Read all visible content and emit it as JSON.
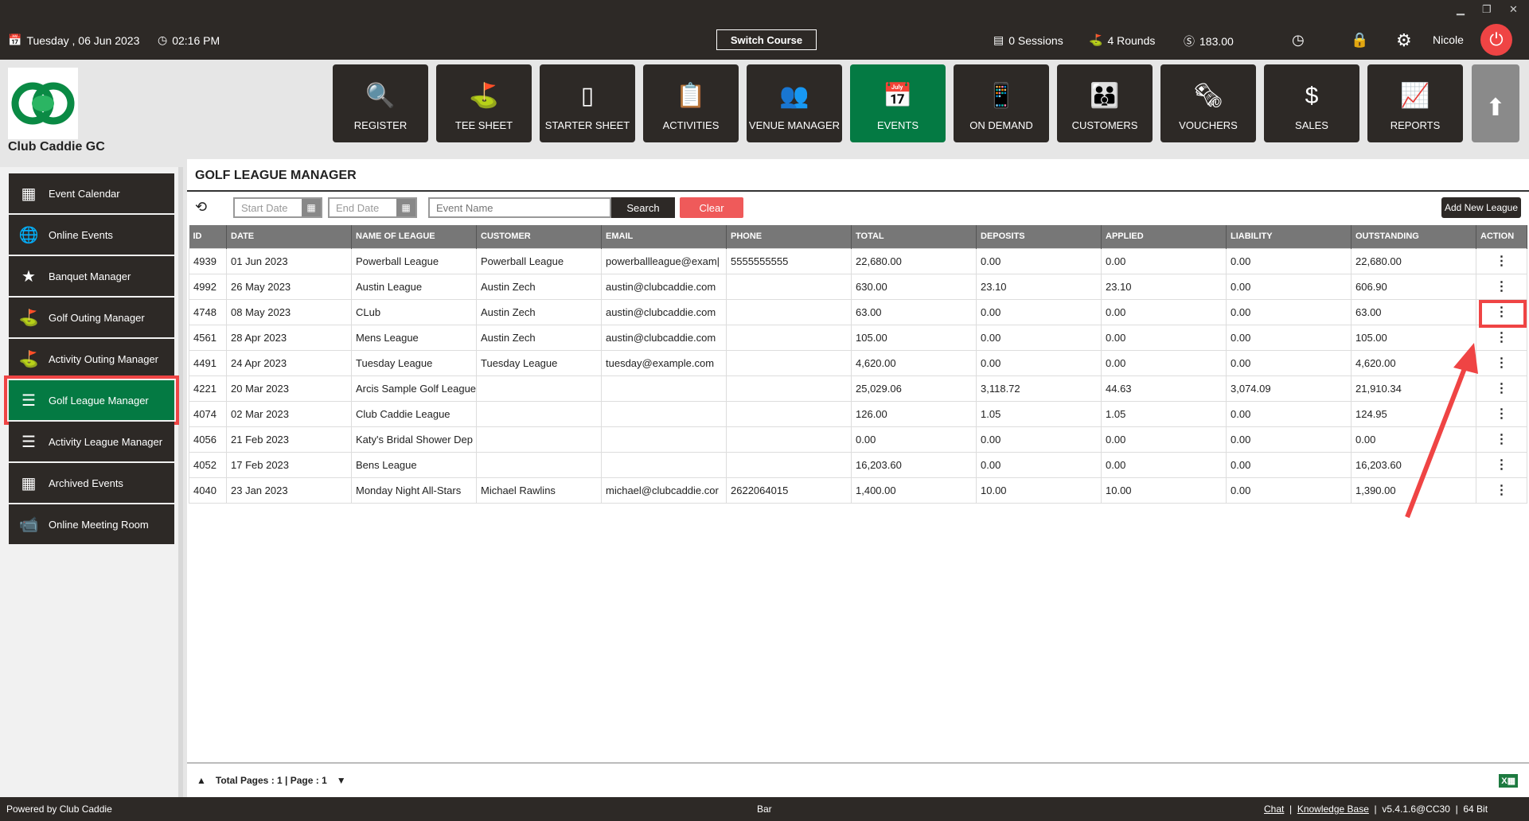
{
  "topbar": {
    "date": "Tuesday ,  06 Jun 2023",
    "time": "02:16 PM",
    "switch_course": "Switch Course",
    "sessions": "0 Sessions",
    "rounds": "4 Rounds",
    "balance": "183.00",
    "user": "Nicole"
  },
  "club_name": "Club Caddie GC",
  "nav": [
    {
      "label": "REGISTER",
      "icon": "🔍"
    },
    {
      "label": "TEE SHEET",
      "icon": "⛳"
    },
    {
      "label": "STARTER SHEET",
      "icon": "▯"
    },
    {
      "label": "ACTIVITIES",
      "icon": "📋"
    },
    {
      "label": "VENUE MANAGER",
      "icon": "👥"
    },
    {
      "label": "EVENTS",
      "icon": "📅"
    },
    {
      "label": "ON DEMAND",
      "icon": "📱"
    },
    {
      "label": "CUSTOMERS",
      "icon": "👪"
    },
    {
      "label": "VOUCHERS",
      "icon": "🗞"
    },
    {
      "label": "SALES",
      "icon": "$"
    },
    {
      "label": "REPORTS",
      "icon": "📈"
    }
  ],
  "sidebar": [
    {
      "label": "Event Calendar",
      "icon": "▦"
    },
    {
      "label": "Online Events",
      "icon": "🌐"
    },
    {
      "label": "Banquet Manager",
      "icon": "★"
    },
    {
      "label": "Golf Outing Manager",
      "icon": "⛳"
    },
    {
      "label": "Activity Outing Manager",
      "icon": "⛳"
    },
    {
      "label": "Golf League Manager",
      "icon": "☰"
    },
    {
      "label": "Activity League Manager",
      "icon": "☰"
    },
    {
      "label": "Archived Events",
      "icon": "▦"
    },
    {
      "label": "Online Meeting Room",
      "icon": "📹"
    }
  ],
  "page_title": "GOLF LEAGUE MANAGER",
  "filters": {
    "start_placeholder": "Start Date",
    "end_placeholder": "End Date",
    "event_placeholder": "Event Name",
    "search": "Search",
    "clear": "Clear",
    "add": "Add New League"
  },
  "colors": {
    "brand_green": "#047a43",
    "clear_red": "#ef5a5a",
    "dark": "#2d2926"
  },
  "table": {
    "headers": [
      "ID",
      "DATE",
      "NAME OF LEAGUE",
      "CUSTOMER",
      "EMAIL",
      "PHONE",
      "TOTAL",
      "DEPOSITS",
      "APPLIED",
      "LIABILITY",
      "OUTSTANDING",
      "ACTION"
    ],
    "rows": [
      [
        "4939",
        "01 Jun 2023",
        "Powerball League",
        "Powerball League",
        "powerballleague@exam|",
        "5555555555",
        "22,680.00",
        "0.00",
        "0.00",
        "0.00",
        "22,680.00"
      ],
      [
        "4992",
        "26 May 2023",
        "Austin League",
        "Austin Zech",
        "austin@clubcaddie.com",
        "",
        "630.00",
        "23.10",
        "23.10",
        "0.00",
        "606.90"
      ],
      [
        "4748",
        "08 May 2023",
        "CLub",
        "Austin Zech",
        "austin@clubcaddie.com",
        "",
        "63.00",
        "0.00",
        "0.00",
        "0.00",
        "63.00"
      ],
      [
        "4561",
        "28 Apr 2023",
        "Mens League",
        "Austin Zech",
        "austin@clubcaddie.com",
        "",
        "105.00",
        "0.00",
        "0.00",
        "0.00",
        "105.00"
      ],
      [
        "4491",
        "24 Apr 2023",
        "Tuesday League",
        "Tuesday League",
        "tuesday@example.com",
        "",
        "4,620.00",
        "0.00",
        "0.00",
        "0.00",
        "4,620.00"
      ],
      [
        "4221",
        "20 Mar 2023",
        "Arcis Sample Golf League",
        "",
        "",
        "",
        "25,029.06",
        "3,118.72",
        "44.63",
        "3,074.09",
        "21,910.34"
      ],
      [
        "4074",
        "02 Mar 2023",
        "Club Caddie League",
        "",
        "",
        "",
        "126.00",
        "1.05",
        "1.05",
        "0.00",
        "124.95"
      ],
      [
        "4056",
        "21 Feb 2023",
        "Katy's Bridal Shower Dep",
        "",
        "",
        "",
        "0.00",
        "0.00",
        "0.00",
        "0.00",
        "0.00"
      ],
      [
        "4052",
        "17 Feb 2023",
        "Bens League",
        "",
        "",
        "",
        "16,203.60",
        "0.00",
        "0.00",
        "0.00",
        "16,203.60"
      ],
      [
        "4040",
        "23 Jan 2023",
        "Monday Night All-Stars",
        "Michael Rawlins",
        "michael@clubcaddie.cor",
        "2622064015",
        "1,400.00",
        "10.00",
        "10.00",
        "0.00",
        "1,390.00"
      ]
    ]
  },
  "pager": "Total Pages : 1 | Page : 1",
  "status": {
    "powered": "Powered by Club Caddie",
    "center": "Bar",
    "chat": "Chat",
    "kb": "Knowledge Base",
    "version": "v5.4.1.6@CC30",
    "bits": "64 Bit"
  }
}
